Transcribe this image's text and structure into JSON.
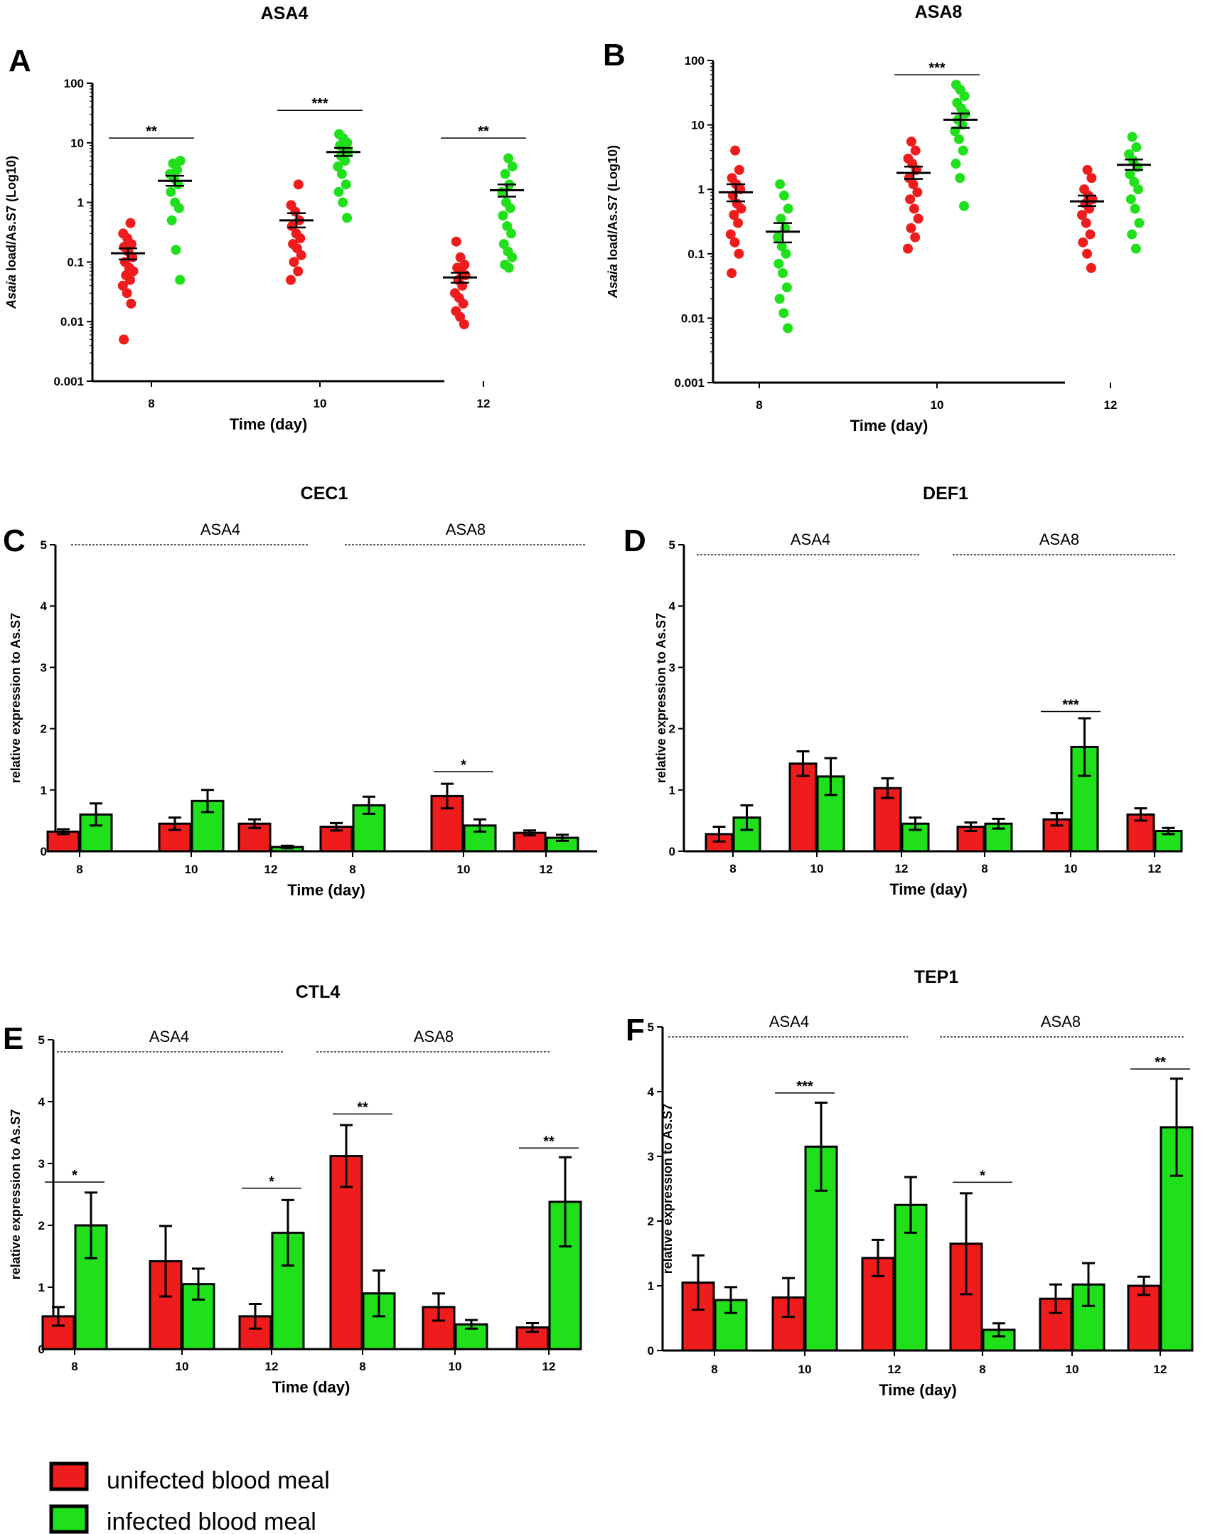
{
  "legend": [
    {
      "label": "unifected blood meal",
      "color": "#ee1c1c"
    },
    {
      "label": "infected blood meal",
      "color": "#20e01c"
    }
  ],
  "colors": {
    "red": "#ee1c1c",
    "green": "#20e01c",
    "axis": "#000000"
  },
  "chart_data": [
    {
      "type": "scatter",
      "letter": "A",
      "title": "ASA4",
      "yscale": "log",
      "ylim": [
        0.001,
        100
      ],
      "yticks": [
        100,
        10,
        1,
        0.1,
        0.01,
        0.001
      ],
      "ytick_labels": [
        "100",
        "10",
        "1",
        "0.1",
        "0.01",
        "0.001"
      ],
      "ylabel_italic": "Asaia",
      "ylabel_rest": " load/As.S7 (Log10)",
      "xlabel": "Time (day)",
      "categories": [
        "8",
        "10",
        "12"
      ],
      "series": [
        {
          "name": "unifected blood meal",
          "color": "red",
          "groups": [
            {
              "points": [
                0.005,
                0.02,
                0.03,
                0.04,
                0.05,
                0.06,
                0.07,
                0.08,
                0.1,
                0.12,
                0.15,
                0.18,
                0.2,
                0.25,
                0.3,
                0.45
              ],
              "mean": 0.14,
              "sem": [
                0.11,
                0.17
              ]
            },
            {
              "points": [
                0.05,
                0.07,
                0.1,
                0.13,
                0.17,
                0.2,
                0.25,
                0.3,
                0.4,
                0.5,
                0.7,
                0.9,
                2.0
              ],
              "mean": 0.5,
              "sem": [
                0.38,
                0.66
              ]
            },
            {
              "points": [
                0.009,
                0.012,
                0.015,
                0.02,
                0.025,
                0.03,
                0.04,
                0.05,
                0.06,
                0.07,
                0.08,
                0.09,
                0.12,
                0.22
              ],
              "mean": 0.055,
              "sem": [
                0.045,
                0.066
              ]
            }
          ]
        },
        {
          "name": "infected blood meal",
          "color": "green",
          "groups": [
            {
              "points": [
                0.05,
                0.16,
                0.5,
                0.8,
                1.0,
                1.5,
                2.0,
                2.5,
                3.0,
                3.5,
                4.5,
                5.0
              ],
              "mean": 2.3,
              "sem": [
                1.9,
                2.8
              ]
            },
            {
              "points": [
                0.55,
                1.0,
                1.5,
                2.0,
                3.0,
                4.0,
                5.0,
                6.0,
                7.0,
                8.0,
                9.0,
                10.0,
                12.0,
                14.0
              ],
              "mean": 7.0,
              "sem": [
                6.0,
                8.2
              ]
            },
            {
              "points": [
                0.08,
                0.09,
                0.12,
                0.15,
                0.2,
                0.3,
                0.4,
                0.6,
                0.8,
                1.0,
                1.5,
                2.0,
                3.0,
                4.0,
                5.5
              ],
              "mean": 1.6,
              "sem": [
                1.25,
                2.0
              ]
            }
          ]
        }
      ],
      "significance": [
        {
          "x_index": 0,
          "y": 12,
          "label": "**"
        },
        {
          "x_index": 1,
          "y": 35,
          "label": "***"
        },
        {
          "x_index": 2,
          "y": 12,
          "label": "**"
        }
      ]
    },
    {
      "type": "scatter",
      "letter": "B",
      "title": "ASA8",
      "yscale": "log",
      "ylim": [
        0.001,
        100
      ],
      "yticks": [
        100,
        10,
        1,
        0.1,
        0.01,
        0.001
      ],
      "ytick_labels": [
        "100",
        "10",
        "1",
        "0.1",
        "0.01",
        "0.001"
      ],
      "ylabel_italic": "Asaia",
      "ylabel_rest": " load/As.S7 (Log10)",
      "xlabel": "Time (day)",
      "categories": [
        "8",
        "10",
        "12"
      ],
      "series": [
        {
          "name": "unifected blood meal",
          "color": "red",
          "groups": [
            {
              "points": [
                0.05,
                0.1,
                0.15,
                0.2,
                0.3,
                0.4,
                0.5,
                0.6,
                0.8,
                1.0,
                1.2,
                1.5,
                2.0,
                4.0
              ],
              "mean": 0.9,
              "sem": [
                0.65,
                1.2
              ]
            },
            {
              "points": [
                0.12,
                0.18,
                0.25,
                0.35,
                0.5,
                0.7,
                0.9,
                1.2,
                1.5,
                2.0,
                2.5,
                3.0,
                4.0,
                5.5
              ],
              "mean": 1.8,
              "sem": [
                1.45,
                2.25
              ]
            },
            {
              "points": [
                0.06,
                0.1,
                0.15,
                0.2,
                0.3,
                0.4,
                0.5,
                0.6,
                0.7,
                0.8,
                1.0,
                1.5,
                2.0
              ],
              "mean": 0.65,
              "sem": [
                0.55,
                0.8
              ]
            }
          ]
        },
        {
          "name": "infected blood meal",
          "color": "green",
          "groups": [
            {
              "points": [
                0.007,
                0.012,
                0.02,
                0.03,
                0.05,
                0.07,
                0.1,
                0.13,
                0.18,
                0.25,
                0.35,
                0.5,
                0.8,
                1.2
              ],
              "mean": 0.22,
              "sem": [
                0.15,
                0.3
              ]
            },
            {
              "points": [
                0.55,
                1.5,
                2.5,
                4.0,
                6.0,
                8.0,
                10.0,
                12.0,
                15.0,
                18.0,
                22.0,
                28.0,
                35.0,
                42.0
              ],
              "mean": 12.0,
              "sem": [
                9.0,
                15.0
              ]
            },
            {
              "points": [
                0.12,
                0.2,
                0.3,
                0.5,
                0.7,
                1.0,
                1.3,
                1.7,
                2.2,
                2.8,
                3.5,
                4.5,
                6.5
              ],
              "mean": 2.4,
              "sem": [
                2.0,
                2.9
              ]
            }
          ]
        }
      ],
      "significance": [
        {
          "x_index": 1,
          "y": 60,
          "label": "***"
        }
      ]
    },
    {
      "type": "bar",
      "letter": "C",
      "title": "CEC1",
      "ylim": [
        0,
        5
      ],
      "yticks": [
        0,
        1,
        2,
        3,
        4,
        5
      ],
      "ylabel": "relative expression to As.S7",
      "xlabel": "Time (day)",
      "groups": [
        "ASA4",
        "ASA8"
      ],
      "categories": [
        "8",
        "10",
        "12",
        "8",
        "10",
        "12"
      ],
      "series": [
        {
          "name": "unifected blood meal",
          "color": "red",
          "values": [
            0.32,
            0.45,
            0.45,
            0.4,
            0.9,
            0.3
          ],
          "errors": [
            0.04,
            0.1,
            0.07,
            0.06,
            0.2,
            0.04
          ]
        },
        {
          "name": "infected blood meal",
          "color": "green",
          "values": [
            0.6,
            0.82,
            0.07,
            0.75,
            0.42,
            0.22
          ],
          "errors": [
            0.18,
            0.18,
            0.02,
            0.14,
            0.1,
            0.05
          ]
        }
      ],
      "significance": [
        {
          "x_index": 4,
          "y": 1.3,
          "label": "*"
        }
      ]
    },
    {
      "type": "bar",
      "letter": "D",
      "title": "DEF1",
      "ylim": [
        0,
        5
      ],
      "yticks": [
        0,
        1,
        2,
        3,
        4,
        5
      ],
      "ylabel": "relative expression to As.S7",
      "xlabel": "Time (day)",
      "groups": [
        "ASA4",
        "ASA8"
      ],
      "categories": [
        "8",
        "10",
        "12",
        "8",
        "10",
        "12"
      ],
      "series": [
        {
          "name": "unifected blood meal",
          "color": "red",
          "values": [
            0.28,
            1.43,
            1.03,
            0.4,
            0.52,
            0.6
          ],
          "errors": [
            0.12,
            0.2,
            0.16,
            0.07,
            0.1,
            0.1
          ]
        },
        {
          "name": "infected blood meal",
          "color": "green",
          "values": [
            0.55,
            1.22,
            0.45,
            0.45,
            1.7,
            0.33
          ],
          "errors": [
            0.2,
            0.3,
            0.1,
            0.08,
            0.47,
            0.05
          ]
        }
      ],
      "significance": [
        {
          "x_index": 4,
          "y": 2.28,
          "label": "***"
        }
      ]
    },
    {
      "type": "bar",
      "letter": "E",
      "title": "CTL4",
      "ylim": [
        0,
        5
      ],
      "yticks": [
        0,
        1,
        2,
        3,
        4,
        5
      ],
      "ylabel": "relative expression to As.S7",
      "xlabel": "Time (day)",
      "groups": [
        "ASA4",
        "ASA8"
      ],
      "categories": [
        "8",
        "10",
        "12",
        "8",
        "10",
        "12"
      ],
      "series": [
        {
          "name": "unifected blood meal",
          "color": "red",
          "values": [
            0.53,
            1.42,
            0.53,
            3.12,
            0.68,
            0.35
          ],
          "errors": [
            0.15,
            0.57,
            0.2,
            0.5,
            0.22,
            0.07
          ]
        },
        {
          "name": "infected blood meal",
          "color": "green",
          "values": [
            2.0,
            1.05,
            1.88,
            0.9,
            0.4,
            2.38
          ],
          "errors": [
            0.53,
            0.25,
            0.53,
            0.37,
            0.07,
            0.72
          ]
        }
      ],
      "significance": [
        {
          "x_index": 0,
          "y": 2.7,
          "label": "*"
        },
        {
          "x_index": 2,
          "y": 2.6,
          "label": "*"
        },
        {
          "x_index": 3,
          "y": 3.8,
          "label": "**"
        },
        {
          "x_index": 5,
          "y": 3.25,
          "label": "**"
        }
      ]
    },
    {
      "type": "bar",
      "letter": "F",
      "title": "TEP1",
      "ylim": [
        0,
        5
      ],
      "yticks": [
        0,
        1,
        2,
        3,
        4,
        5
      ],
      "ylabel": "relative expression to As.S7",
      "xlabel": "Time (day)",
      "groups": [
        "ASA4",
        "ASA8"
      ],
      "categories": [
        "8",
        "10",
        "12",
        "8",
        "10",
        "12"
      ],
      "series": [
        {
          "name": "unifected blood meal",
          "color": "red",
          "values": [
            1.05,
            0.82,
            1.43,
            1.65,
            0.8,
            1.0
          ],
          "errors": [
            0.42,
            0.3,
            0.28,
            0.78,
            0.22,
            0.14
          ]
        },
        {
          "name": "infected blood meal",
          "color": "green",
          "values": [
            0.78,
            3.15,
            2.25,
            0.32,
            1.02,
            3.45
          ],
          "errors": [
            0.2,
            0.68,
            0.43,
            0.1,
            0.33,
            0.75
          ]
        }
      ],
      "significance": [
        {
          "x_index": 1,
          "y": 3.98,
          "label": "***"
        },
        {
          "x_index": 3,
          "y": 2.6,
          "label": "*"
        },
        {
          "x_index": 5,
          "y": 4.35,
          "label": "**"
        }
      ]
    }
  ]
}
